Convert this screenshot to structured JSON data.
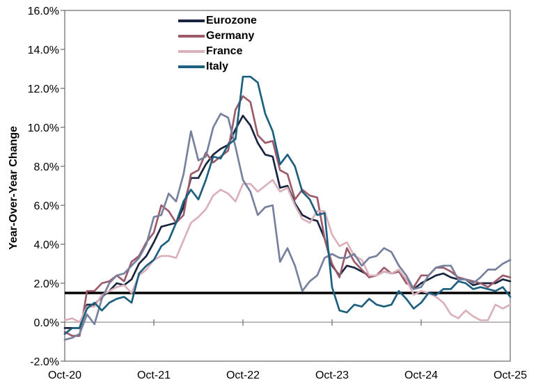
{
  "chart_data": {
    "type": "line",
    "title": "",
    "ylabel": "Year-Over-Year Change",
    "x_tick_labels": [
      "Oct-20",
      "Oct-21",
      "Oct-22",
      "Oct-23",
      "Oct-24",
      "Oct-25"
    ],
    "points_per_tick": 12,
    "n_points": 61,
    "ylim": [
      -2,
      16
    ],
    "ytick_values": [
      16,
      14,
      12,
      10,
      8,
      6,
      4,
      2,
      0,
      -2
    ],
    "ytick_labels": [
      "16.0%",
      "14.0%",
      "12.0%",
      "10.0%",
      "8.0%",
      "6.0%",
      "4.0%",
      "2.0%",
      "0.0%",
      "-2.0%"
    ],
    "grid": "zero-line-only",
    "zero_line_value": 0,
    "reference_line_value": 1.5,
    "legend_position": "top-inside",
    "colors": {
      "reference_line": "#000000",
      "zero_line": "#a6a6a6",
      "axis": "#737373",
      "text": "#000000",
      "background": "#ffffff"
    },
    "series": [
      {
        "name": "Eurozone",
        "color": "#19253f",
        "in_legend": true,
        "values": [
          -0.3,
          -0.3,
          -0.3,
          0.9,
          0.9,
          1.3,
          1.6,
          2.0,
          1.9,
          2.2,
          3.0,
          3.4,
          4.1,
          4.9,
          5.0,
          5.1,
          5.9,
          7.4,
          7.4,
          8.1,
          8.6,
          8.9,
          9.1,
          9.9,
          10.6,
          10.1,
          9.2,
          8.6,
          8.5,
          6.9,
          7.0,
          6.1,
          5.5,
          5.3,
          5.2,
          4.3,
          2.9,
          2.4,
          2.9,
          2.8,
          2.6,
          2.4,
          2.4,
          2.6,
          2.5,
          2.6,
          2.2,
          1.7,
          2.0,
          2.2,
          2.4,
          2.5,
          2.3,
          2.2,
          2.2,
          1.9,
          2.0,
          2.0,
          2.0,
          2.2,
          2.1
        ]
      },
      {
        "name": "Germany",
        "color": "#9c5a6b",
        "in_legend": true,
        "values": [
          -0.5,
          -0.7,
          -0.7,
          1.6,
          1.6,
          2.0,
          2.1,
          2.4,
          2.1,
          3.1,
          3.4,
          4.1,
          4.6,
          6.0,
          5.7,
          5.1,
          5.5,
          7.6,
          7.8,
          8.7,
          8.2,
          8.5,
          8.8,
          10.9,
          11.6,
          11.3,
          9.6,
          9.2,
          9.3,
          7.8,
          7.6,
          6.3,
          6.8,
          6.5,
          6.4,
          4.3,
          3.0,
          2.3,
          3.8,
          3.1,
          2.7,
          2.3,
          2.4,
          2.8,
          2.5,
          2.6,
          2.0,
          1.8,
          2.4,
          2.4,
          2.8,
          2.8,
          2.6,
          2.3,
          2.2,
          2.1,
          2.0,
          1.8,
          2.1,
          2.4,
          2.3
        ]
      },
      {
        "name": "France",
        "color": "#dab1ba",
        "in_legend": true,
        "values": [
          0.1,
          0.2,
          0.0,
          0.8,
          0.8,
          1.4,
          1.6,
          1.8,
          1.9,
          1.5,
          2.4,
          2.7,
          3.2,
          3.4,
          3.4,
          3.3,
          4.2,
          5.1,
          5.4,
          5.8,
          6.5,
          6.8,
          6.6,
          6.2,
          7.1,
          7.1,
          6.7,
          7.0,
          7.3,
          6.7,
          6.9,
          6.0,
          5.3,
          5.1,
          5.7,
          5.7,
          4.5,
          3.9,
          4.1,
          3.4,
          3.2,
          2.4,
          2.4,
          2.6,
          2.5,
          2.7,
          2.2,
          1.4,
          1.6,
          1.5,
          1.3,
          1.0,
          0.4,
          0.2,
          0.6,
          0.3,
          0.1,
          0.1,
          0.9,
          0.7,
          0.9
        ]
      },
      {
        "name": "",
        "color": "#77819d",
        "in_legend": false,
        "values": [
          -0.9,
          -0.8,
          -0.6,
          0.4,
          -0.1,
          1.2,
          2.0,
          2.4,
          2.5,
          2.9,
          3.3,
          4.0,
          5.4,
          5.5,
          6.6,
          6.2,
          7.6,
          9.8,
          8.3,
          8.5,
          10.0,
          10.7,
          10.5,
          9.0,
          7.3,
          6.7,
          5.5,
          5.9,
          6.0,
          3.1,
          3.8,
          2.9,
          1.6,
          2.1,
          2.4,
          3.3,
          3.5,
          3.3,
          3.3,
          3.5,
          2.9,
          3.3,
          3.4,
          3.8,
          3.6,
          2.9,
          2.4,
          1.7,
          1.8,
          2.4,
          2.8,
          2.9,
          2.9,
          2.2,
          2.2,
          2.0,
          2.3,
          2.7,
          2.7,
          3.0,
          3.2
        ]
      },
      {
        "name": "Italy",
        "color": "#1c5f7e",
        "in_legend": true,
        "values": [
          -0.6,
          -0.3,
          -0.3,
          0.7,
          1.0,
          0.6,
          1.0,
          1.2,
          1.3,
          1.0,
          2.5,
          2.9,
          3.2,
          3.9,
          4.2,
          5.1,
          6.2,
          6.8,
          6.3,
          7.3,
          8.5,
          8.4,
          9.1,
          9.4,
          12.6,
          12.6,
          12.3,
          10.7,
          9.8,
          8.1,
          8.6,
          8.0,
          6.7,
          6.3,
          5.5,
          5.6,
          1.8,
          0.6,
          0.5,
          0.9,
          0.8,
          1.2,
          0.9,
          0.8,
          0.9,
          1.6,
          1.2,
          0.7,
          1.0,
          1.5,
          1.4,
          1.7,
          1.7,
          2.1,
          2.0,
          1.7,
          1.8,
          1.7,
          1.6,
          1.8,
          1.3
        ]
      }
    ]
  }
}
